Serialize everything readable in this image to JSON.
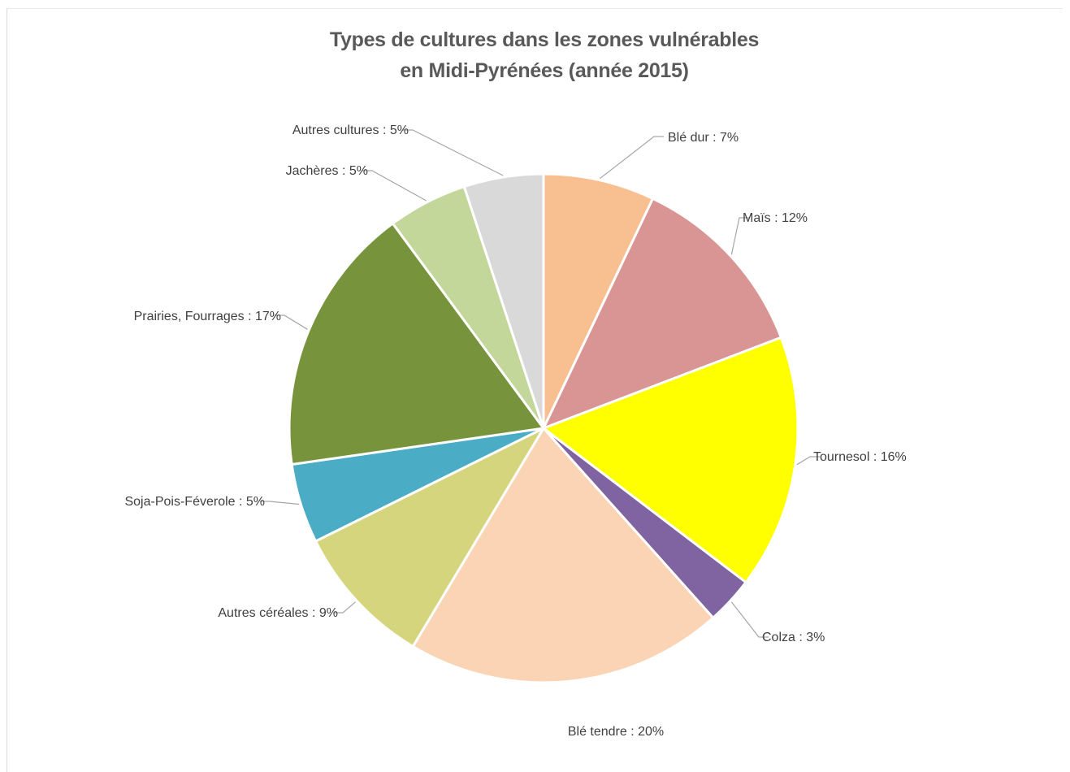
{
  "chart_data": {
    "type": "pie",
    "title_lines": [
      "Types de cultures dans les zones vulnérables",
      "en Midi-Pyrénées (année 2015)"
    ],
    "slices": [
      {
        "name": "Blé dur",
        "value": 7,
        "label": "Blé dur : 7%",
        "color": "#F8C090"
      },
      {
        "name": "Maïs",
        "value": 12,
        "label": "Maïs : 12%",
        "color": "#D99594"
      },
      {
        "name": "Tournesol",
        "value": 16,
        "label": "Tournesol : 16%",
        "color": "#FFFF00"
      },
      {
        "name": "Colza",
        "value": 3,
        "label": "Colza : 3%",
        "color": "#8064A2"
      },
      {
        "name": "Blé tendre",
        "value": 20,
        "label": "Blé tendre : 20%",
        "color": "#FAD4B4"
      },
      {
        "name": "Autres céréales",
        "value": 9,
        "label": "Autres céréales : 9%",
        "color": "#D5D57D"
      },
      {
        "name": "Soja-Pois-Féverole",
        "value": 5,
        "label": "Soja-Pois-Féverole : 5%",
        "color": "#4BACC6"
      },
      {
        "name": "Prairies, Fourrages",
        "value": 17,
        "label": "Prairies, Fourrages : 17%",
        "color": "#77933C"
      },
      {
        "name": "Jachères",
        "value": 5,
        "label": "Jachères : 5%",
        "color": "#C4D79B"
      },
      {
        "name": "Autres cultures",
        "value": 5,
        "label": "Autres cultures : 5%",
        "color": "#D9D9D9"
      }
    ],
    "start_angle": "12 o'clock",
    "direction": "clockwise",
    "legend": "none (data labels with leader lines)"
  }
}
